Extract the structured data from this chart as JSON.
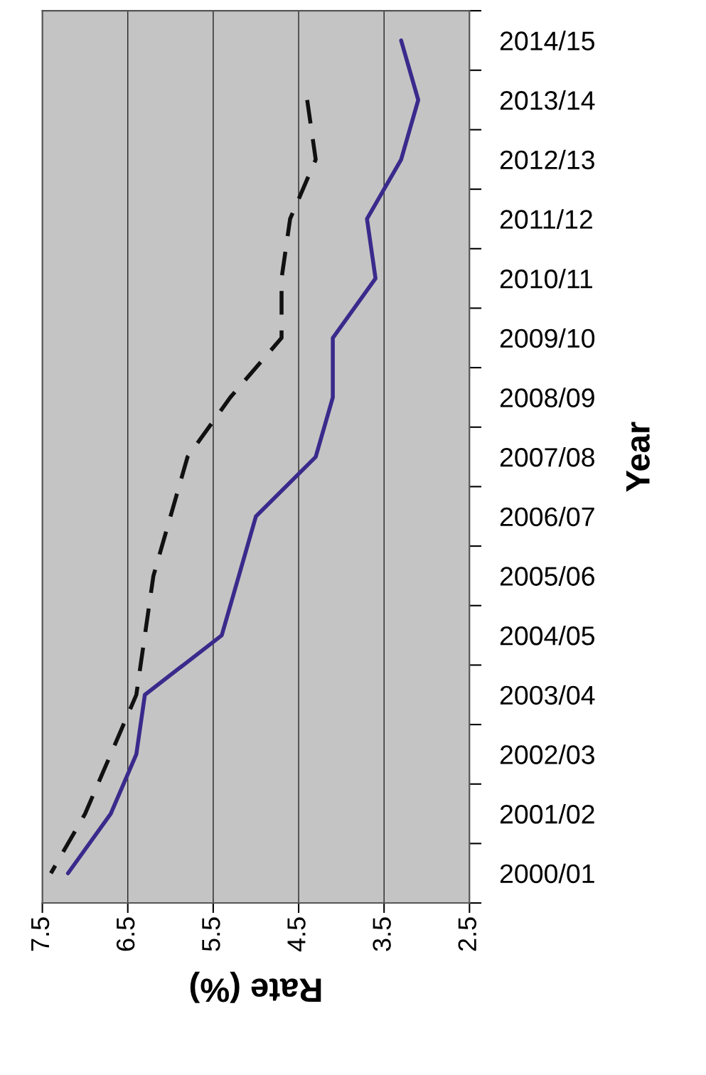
{
  "chart_data": {
    "type": "line",
    "orientation": "horizontal",
    "xlabel": "Rate (%)",
    "ylabel": "Year",
    "categories": [
      "2014/15",
      "2013/14",
      "2012/13",
      "2011/12",
      "2010/11",
      "2009/10",
      "2008/09",
      "2007/08",
      "2006/07",
      "2005/06",
      "2004/05",
      "2003/04",
      "2002/03",
      "2001/02",
      "2000/01"
    ],
    "series": [
      {
        "color": "#3b2a8c",
        "line_style": "solid",
        "values": [
          3.3,
          3.1,
          3.3,
          3.7,
          3.6,
          4.1,
          4.1,
          4.3,
          5.0,
          5.2,
          5.4,
          6.3,
          6.4,
          6.7,
          7.2
        ]
      },
      {
        "color": "#111111",
        "line_style": "dashed",
        "values": [
          null,
          4.4,
          4.3,
          4.6,
          4.7,
          4.7,
          5.3,
          5.8,
          6.0,
          6.2,
          6.3,
          6.4,
          6.7,
          7.0,
          7.4
        ]
      }
    ],
    "xlim": [
      7.5,
      2.5
    ],
    "xticks": [
      7.5,
      6.5,
      5.5,
      4.5,
      3.5,
      2.5
    ],
    "grid": "x",
    "legend": false
  }
}
